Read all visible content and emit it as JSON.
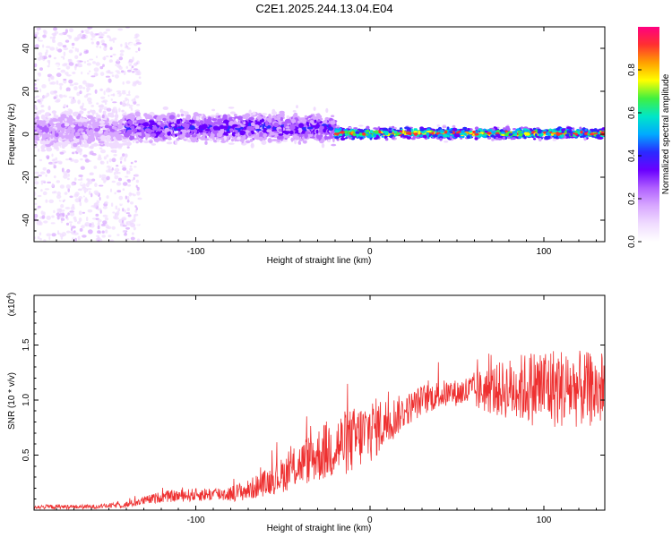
{
  "figure_title": "C2E1.2025.244.13.04.E04",
  "colors": {
    "snr_line": "#ee3030",
    "colormap": [
      "#ffffff",
      "#f0dcff",
      "#d8a8ff",
      "#b060ff",
      "#6a00ff",
      "#2a2aff",
      "#00aaff",
      "#00e6c8",
      "#40f040",
      "#ffff00",
      "#ffa000",
      "#ff3030",
      "#ff0080"
    ]
  },
  "chart_data": [
    {
      "type": "heatmap",
      "title": "",
      "xlabel": "Height of straight line (km)",
      "ylabel": "Frequency (Hz)",
      "xlim": [
        -193,
        135
      ],
      "ylim": [
        -50,
        50
      ],
      "xticks": [
        -100,
        0,
        100
      ],
      "xtick_labels": [
        "-100",
        "0",
        "100"
      ],
      "yticks": [
        -40,
        -20,
        0,
        20,
        40
      ],
      "ytick_labels": [
        "-40",
        "-20",
        "0",
        "20",
        "40"
      ],
      "colorbar": {
        "label": "Normalized spectral amplitude",
        "range": [
          0,
          1
        ],
        "ticks": [
          0.0,
          0.2,
          0.4,
          0.6,
          0.8
        ],
        "tick_labels": [
          "0.0",
          "0.2",
          "0.4",
          "0.6",
          "0.8"
        ]
      },
      "regions": [
        {
          "x": [
            -193,
            -140
          ],
          "freq_center": 2,
          "freq_spread": 8,
          "amplitude": 0.25,
          "background_extent": 50
        },
        {
          "x": [
            -140,
            -20
          ],
          "freq_center": 3,
          "freq_spread": 6,
          "amplitude": 0.4
        },
        {
          "x": [
            -20,
            135
          ],
          "freq_center": 0.5,
          "freq_spread": 2.5,
          "amplitude": 0.85
        }
      ]
    },
    {
      "type": "line",
      "title": "",
      "xlabel": "Height of straight line (km)",
      "ylabel": "SNR (10 * v/v)",
      "y_multiplier": "(x10^4)",
      "y_multiplier_base": "(x10",
      "y_multiplier_exp": "4",
      "y_multiplier_close": ")",
      "xlim": [
        -193,
        135
      ],
      "ylim": [
        0,
        1.95
      ],
      "xticks": [
        -100,
        0,
        100
      ],
      "xtick_labels": [
        "-100",
        "0",
        "100"
      ],
      "yticks": [
        0.5,
        1.0,
        1.5
      ],
      "ytick_labels": [
        "0.5",
        "1.0",
        "1.5"
      ],
      "series": [
        {
          "name": "SNR",
          "mean_profile": {
            "x": [
              -193,
              -160,
              -140,
              -120,
              -100,
              -80,
              -70,
              -60,
              -50,
              -40,
              -30,
              -20,
              -10,
              0,
              10,
              20,
              30,
              40,
              60,
              80,
              100,
              120,
              135
            ],
            "y": [
              0.03,
              0.03,
              0.05,
              0.12,
              0.14,
              0.15,
              0.18,
              0.25,
              0.32,
              0.42,
              0.5,
              0.58,
              0.63,
              0.72,
              0.8,
              0.9,
              1.0,
              1.05,
              1.08,
              1.1,
              1.12,
              1.1,
              1.08
            ]
          },
          "noise_amplitude": {
            "x": [
              -193,
              -150,
              -120,
              -80,
              -60,
              -40,
              -20,
              0,
              20,
              50,
              80,
              100,
              120,
              135
            ],
            "y": [
              0.02,
              0.02,
              0.05,
              0.07,
              0.12,
              0.2,
              0.3,
              0.3,
              0.15,
              0.12,
              0.28,
              0.38,
              0.35,
              0.33
            ]
          }
        }
      ]
    }
  ]
}
